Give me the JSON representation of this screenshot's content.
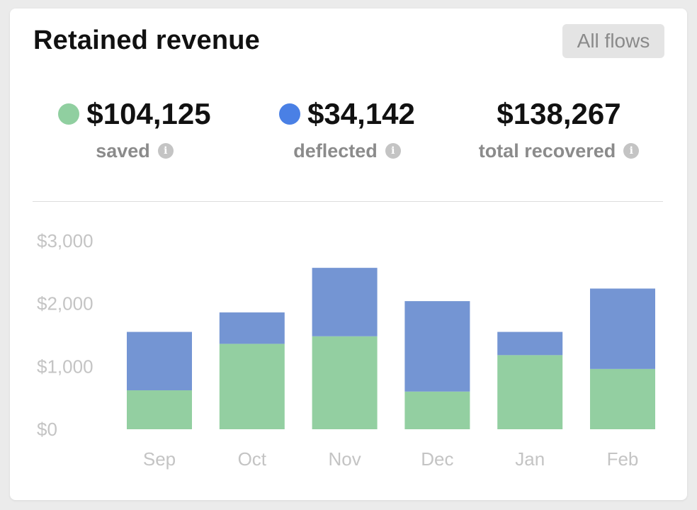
{
  "header": {
    "title": "Retained revenue",
    "filter_label": "All flows"
  },
  "stats": [
    {
      "value": "$104,125",
      "label": "saved",
      "dot_color": "#90cfa0"
    },
    {
      "value": "$34,142",
      "label": "deflected",
      "dot_color": "#4a80e5"
    },
    {
      "value": "$138,267",
      "label": "total recovered"
    }
  ],
  "colors": {
    "saved": "#93cfa1",
    "deflected": "#7495d3",
    "info_icon": "#c4c4c4"
  },
  "chart_data": {
    "type": "bar",
    "stacked": true,
    "categories": [
      "Sep",
      "Oct",
      "Nov",
      "Dec",
      "Jan",
      "Feb"
    ],
    "series": [
      {
        "name": "saved",
        "values": [
          620,
          1360,
          1480,
          600,
          1180,
          960
        ]
      },
      {
        "name": "deflected",
        "values": [
          930,
          500,
          1090,
          1440,
          370,
          1280
        ]
      }
    ],
    "yticks": [
      "$0",
      "$1,000",
      "$2,000",
      "$3,000"
    ],
    "ylim": [
      0,
      3000
    ],
    "grid": false,
    "legend": "top"
  }
}
